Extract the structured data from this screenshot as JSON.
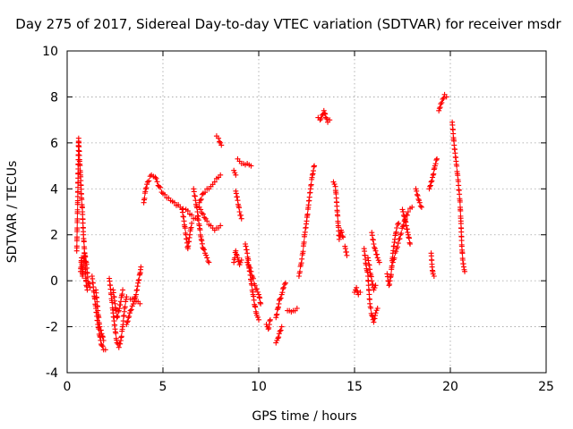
{
  "chart_data": {
    "type": "scatter",
    "title": "Day 275 of 2017, Sidereal Day-to-day VTEC variation (SDTVAR) for receiver msdr",
    "xlabel": "GPS time / hours",
    "ylabel": "SDTVAR / TECUs",
    "xlim": [
      0,
      25
    ],
    "ylim": [
      -4,
      10
    ],
    "xticks": [
      "0",
      "5",
      "10",
      "15",
      "20",
      "25"
    ],
    "yticks": [
      "-4",
      "-2",
      "0",
      "2",
      "4",
      "6",
      "8",
      "10"
    ],
    "grid": true,
    "marker": "plus",
    "point_color": "#ff0000",
    "segments": [
      [
        [
          0.5,
          1.3
        ],
        [
          0.55,
          3.4
        ],
        [
          0.6,
          6.2
        ],
        [
          0.65,
          5.2
        ],
        [
          0.7,
          4.6
        ],
        [
          0.75,
          3.6
        ],
        [
          0.8,
          3.0
        ],
        [
          0.85,
          2.0
        ],
        [
          0.9,
          1.4
        ],
        [
          0.95,
          0.5
        ],
        [
          1.0,
          -0.2
        ],
        [
          1.05,
          -0.4
        ]
      ],
      [
        [
          0.7,
          0.4
        ],
        [
          0.75,
          1.0
        ],
        [
          0.8,
          0.2
        ],
        [
          0.9,
          1.2
        ],
        [
          1.0,
          0.8
        ],
        [
          1.1,
          -0.1
        ],
        [
          1.2,
          -0.3
        ]
      ],
      [
        [
          1.3,
          0.2
        ],
        [
          1.4,
          -0.5
        ],
        [
          1.5,
          -1.2
        ],
        [
          1.6,
          -1.9
        ],
        [
          1.7,
          -2.4
        ],
        [
          1.8,
          -2.8
        ],
        [
          1.9,
          -3.0
        ],
        [
          2.0,
          -3.0
        ]
      ],
      [
        [
          1.5,
          -0.4
        ],
        [
          1.6,
          -1.3
        ],
        [
          1.7,
          -2.0
        ],
        [
          1.8,
          -2.3
        ],
        [
          1.9,
          -2.6
        ]
      ],
      [
        [
          2.2,
          0.1
        ],
        [
          2.3,
          -0.6
        ],
        [
          2.4,
          -1.4
        ],
        [
          2.5,
          -2.1
        ],
        [
          2.6,
          -2.7
        ],
        [
          2.7,
          -2.9
        ],
        [
          2.8,
          -2.6
        ],
        [
          2.9,
          -2.0
        ],
        [
          3.0,
          -1.2
        ],
        [
          3.1,
          -0.7
        ]
      ],
      [
        [
          2.4,
          -0.4
        ],
        [
          2.5,
          -1.0
        ],
        [
          2.6,
          -1.6
        ],
        [
          2.7,
          -1.3
        ],
        [
          2.8,
          -0.9
        ],
        [
          2.9,
          -0.4
        ]
      ],
      [
        [
          3.1,
          -1.9
        ],
        [
          3.2,
          -1.6
        ],
        [
          3.3,
          -1.3
        ],
        [
          3.4,
          -1.1
        ],
        [
          3.5,
          -0.9
        ],
        [
          3.6,
          -0.6
        ],
        [
          3.7,
          -0.1
        ],
        [
          3.8,
          0.3
        ],
        [
          3.85,
          0.6
        ]
      ],
      [
        [
          3.3,
          -0.8
        ],
        [
          3.5,
          -0.8
        ],
        [
          3.7,
          -0.9
        ],
        [
          3.8,
          -1.0
        ]
      ],
      [
        [
          4.0,
          3.4
        ],
        [
          4.1,
          4.0
        ],
        [
          4.2,
          4.3
        ],
        [
          4.4,
          4.6
        ],
        [
          4.6,
          4.5
        ],
        [
          4.8,
          4.1
        ],
        [
          5.0,
          3.8
        ],
        [
          5.3,
          3.6
        ],
        [
          5.6,
          3.4
        ],
        [
          5.9,
          3.2
        ],
        [
          6.2,
          3.1
        ],
        [
          6.4,
          2.9
        ],
        [
          6.6,
          2.7
        ],
        [
          6.8,
          2.7
        ]
      ],
      [
        [
          6.0,
          3.1
        ],
        [
          6.1,
          2.6
        ],
        [
          6.2,
          2.0
        ],
        [
          6.3,
          1.4
        ],
        [
          6.4,
          2.0
        ],
        [
          6.5,
          2.5
        ]
      ],
      [
        [
          6.6,
          4.0
        ],
        [
          6.7,
          3.5
        ],
        [
          6.8,
          3.0
        ],
        [
          6.9,
          2.4
        ],
        [
          7.0,
          1.8
        ],
        [
          7.1,
          1.4
        ],
        [
          7.2,
          1.2
        ],
        [
          7.3,
          1.0
        ],
        [
          7.4,
          0.8
        ]
      ],
      [
        [
          6.9,
          3.4
        ],
        [
          7.1,
          3.8
        ],
        [
          7.3,
          4.0
        ],
        [
          7.5,
          4.1
        ],
        [
          7.7,
          4.3
        ],
        [
          7.9,
          4.5
        ],
        [
          8.0,
          4.6
        ]
      ],
      [
        [
          6.9,
          3.2
        ],
        [
          7.1,
          2.9
        ],
        [
          7.3,
          2.6
        ],
        [
          7.5,
          2.4
        ],
        [
          7.7,
          2.2
        ],
        [
          7.9,
          2.3
        ],
        [
          8.0,
          2.4
        ]
      ],
      [
        [
          7.8,
          6.3
        ],
        [
          7.9,
          6.2
        ],
        [
          8.0,
          6.0
        ],
        [
          8.05,
          5.9
        ]
      ],
      [
        [
          8.7,
          4.8
        ],
        [
          8.8,
          4.6
        ]
      ],
      [
        [
          8.9,
          5.3
        ],
        [
          9.0,
          5.2
        ],
        [
          9.2,
          5.1
        ],
        [
          9.4,
          5.1
        ],
        [
          9.6,
          5.0
        ]
      ],
      [
        [
          8.8,
          3.9
        ],
        [
          8.9,
          3.5
        ],
        [
          9.0,
          3.0
        ],
        [
          9.1,
          2.7
        ]
      ],
      [
        [
          8.7,
          0.8
        ],
        [
          8.8,
          1.3
        ],
        [
          8.9,
          1.0
        ],
        [
          9.0,
          0.7
        ],
        [
          9.1,
          0.9
        ]
      ],
      [
        [
          9.3,
          1.6
        ],
        [
          9.4,
          1.2
        ],
        [
          9.5,
          0.6
        ],
        [
          9.6,
          0.0
        ],
        [
          9.7,
          -0.6
        ],
        [
          9.8,
          -1.1
        ],
        [
          9.9,
          -1.5
        ],
        [
          10.0,
          -1.7
        ]
      ],
      [
        [
          9.4,
          0.8
        ],
        [
          9.6,
          0.4
        ],
        [
          9.8,
          -0.2
        ],
        [
          10.0,
          -0.6
        ],
        [
          10.1,
          -1.0
        ]
      ],
      [
        [
          10.4,
          -1.9
        ],
        [
          10.5,
          -2.1
        ],
        [
          10.6,
          -1.7
        ]
      ],
      [
        [
          10.9,
          -2.7
        ],
        [
          11.0,
          -2.5
        ],
        [
          11.1,
          -2.2
        ],
        [
          11.2,
          -2.0
        ]
      ],
      [
        [
          10.9,
          -1.6
        ],
        [
          11.0,
          -1.2
        ],
        [
          11.1,
          -0.8
        ],
        [
          11.2,
          -0.6
        ],
        [
          11.3,
          -0.3
        ],
        [
          11.4,
          -0.1
        ]
      ],
      [
        [
          11.5,
          -1.3
        ],
        [
          11.6,
          -1.3
        ],
        [
          11.8,
          -1.3
        ],
        [
          12.0,
          -1.2
        ]
      ],
      [
        [
          12.1,
          0.2
        ],
        [
          12.2,
          0.7
        ],
        [
          12.3,
          1.2
        ],
        [
          12.4,
          2.0
        ],
        [
          12.5,
          2.6
        ],
        [
          12.6,
          3.3
        ],
        [
          12.7,
          4.0
        ],
        [
          12.8,
          4.6
        ],
        [
          12.9,
          5.0
        ]
      ],
      [
        [
          13.1,
          7.1
        ],
        [
          13.2,
          7.0
        ],
        [
          13.3,
          7.2
        ],
        [
          13.4,
          7.4
        ],
        [
          13.5,
          7.1
        ],
        [
          13.6,
          6.9
        ],
        [
          13.7,
          7.0
        ]
      ],
      [
        [
          13.9,
          4.3
        ],
        [
          14.0,
          4.1
        ],
        [
          14.05,
          3.6
        ],
        [
          14.1,
          3.0
        ],
        [
          14.15,
          2.4
        ],
        [
          14.2,
          1.8
        ],
        [
          14.3,
          2.2
        ],
        [
          14.4,
          1.9
        ]
      ],
      [
        [
          14.5,
          1.5
        ],
        [
          14.6,
          1.1
        ]
      ],
      [
        [
          15.0,
          -0.5
        ],
        [
          15.1,
          -0.3
        ],
        [
          15.2,
          -0.6
        ],
        [
          15.3,
          -0.5
        ]
      ],
      [
        [
          15.5,
          1.4
        ],
        [
          15.6,
          0.7
        ],
        [
          15.7,
          0.2
        ],
        [
          15.8,
          -1.0
        ],
        [
          15.9,
          -1.5
        ],
        [
          16.0,
          -1.8
        ],
        [
          16.1,
          -1.4
        ],
        [
          16.2,
          -1.2
        ]
      ],
      [
        [
          15.7,
          1.0
        ],
        [
          15.8,
          0.5
        ],
        [
          15.9,
          0.0
        ],
        [
          16.0,
          -0.4
        ],
        [
          16.1,
          -0.2
        ]
      ],
      [
        [
          15.9,
          2.1
        ],
        [
          16.0,
          1.6
        ],
        [
          16.1,
          1.3
        ],
        [
          16.2,
          1.0
        ],
        [
          16.3,
          0.8
        ]
      ],
      [
        [
          16.7,
          0.3
        ],
        [
          16.8,
          -0.2
        ],
        [
          16.9,
          0.2
        ],
        [
          17.0,
          1.2
        ],
        [
          17.1,
          1.8
        ],
        [
          17.2,
          2.3
        ],
        [
          17.3,
          2.5
        ]
      ],
      [
        [
          17.0,
          0.8
        ],
        [
          17.2,
          1.4
        ],
        [
          17.4,
          2.0
        ],
        [
          17.6,
          2.6
        ],
        [
          17.8,
          3.0
        ],
        [
          18.0,
          3.2
        ]
      ],
      [
        [
          17.5,
          3.1
        ],
        [
          17.6,
          2.8
        ],
        [
          17.7,
          2.4
        ],
        [
          17.8,
          2.0
        ],
        [
          17.9,
          1.6
        ]
      ],
      [
        [
          18.2,
          4.0
        ],
        [
          18.3,
          3.7
        ],
        [
          18.4,
          3.4
        ],
        [
          18.5,
          3.2
        ]
      ],
      [
        [
          18.9,
          4.0
        ],
        [
          19.0,
          4.3
        ],
        [
          19.1,
          4.6
        ],
        [
          19.2,
          5.0
        ],
        [
          19.3,
          5.3
        ]
      ],
      [
        [
          19.0,
          1.2
        ],
        [
          19.05,
          0.6
        ],
        [
          19.1,
          0.3
        ],
        [
          19.15,
          0.2
        ]
      ],
      [
        [
          19.4,
          7.4
        ],
        [
          19.5,
          7.7
        ],
        [
          19.6,
          7.9
        ],
        [
          19.7,
          8.1
        ],
        [
          19.8,
          8.0
        ]
      ],
      [
        [
          20.1,
          6.9
        ],
        [
          20.15,
          6.4
        ],
        [
          20.2,
          5.9
        ],
        [
          20.3,
          5.2
        ],
        [
          20.4,
          4.4
        ],
        [
          20.5,
          3.5
        ],
        [
          20.55,
          2.6
        ],
        [
          20.6,
          1.5
        ],
        [
          20.65,
          0.9
        ],
        [
          20.7,
          0.6
        ],
        [
          20.75,
          0.4
        ]
      ]
    ]
  }
}
